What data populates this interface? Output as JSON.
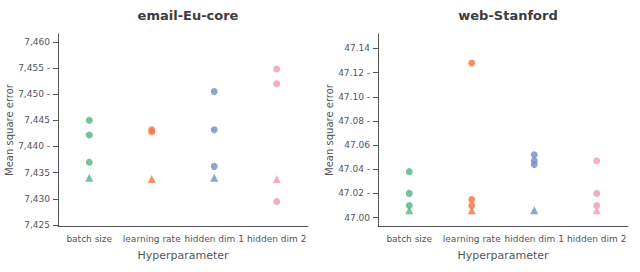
{
  "chart_data": [
    {
      "type": "scatter",
      "title": "email-Eu-core",
      "xlabel": "Hyperparameter",
      "ylabel": "Mean square error",
      "categories": [
        "batch size",
        "learning rate",
        "hidden dim 1",
        "hidden dim 2"
      ],
      "ylim": [
        7.4248,
        7.4615
      ],
      "yticks": [
        {
          "value": 7.425,
          "label": "7,425"
        },
        {
          "value": 7.43,
          "label": "7,430"
        },
        {
          "value": 7.435,
          "label": "7,435"
        },
        {
          "value": 7.44,
          "label": "7,440 -"
        },
        {
          "value": 7.445,
          "label": "7,445"
        },
        {
          "value": 7.45,
          "label": "7,450 -"
        },
        {
          "value": 7.455,
          "label": "7,455 -"
        },
        {
          "value": 7.46,
          "label": "7,460"
        }
      ],
      "grid": false,
      "series": [
        {
          "color": "#5cb88a",
          "marker": "circle",
          "x": [
            "batch size",
            "batch size",
            "batch size"
          ],
          "values": [
            7.445,
            7.4422,
            7.437
          ]
        },
        {
          "color": "#5cb88a",
          "marker": "triangle",
          "x": [
            "batch size"
          ],
          "values": [
            7.434
          ]
        },
        {
          "color": "#f47b4a",
          "marker": "circle",
          "x": [
            "learning rate",
            "learning rate"
          ],
          "values": [
            7.4432,
            7.4428
          ]
        },
        {
          "color": "#f47b4a",
          "marker": "triangle",
          "x": [
            "learning rate"
          ],
          "values": [
            7.4338
          ]
        },
        {
          "color": "#8090c8",
          "marker": "circle",
          "x": [
            "hidden dim 1",
            "hidden dim 1",
            "hidden dim 1"
          ],
          "values": [
            7.4505,
            7.4432,
            7.4362
          ]
        },
        {
          "color": "#8090c8",
          "marker": "triangle",
          "x": [
            "hidden dim 1"
          ],
          "values": [
            7.434
          ]
        },
        {
          "color": "#f0a0c0",
          "marker": "circle",
          "x": [
            "hidden dim 2",
            "hidden dim 2",
            "hidden dim 2"
          ],
          "values": [
            7.4548,
            7.452,
            7.4295
          ]
        },
        {
          "color": "#f0a0c0",
          "marker": "triangle",
          "x": [
            "hidden dim 2"
          ],
          "values": [
            7.4338
          ]
        }
      ]
    },
    {
      "type": "scatter",
      "title": "web-Stanford",
      "xlabel": "Hyperparameter",
      "ylabel": "Mean square error",
      "categories": [
        "batch size",
        "learning rate",
        "hidden dim 1",
        "hidden dim 2"
      ],
      "ylim": [
        46.993,
        47.152
      ],
      "yticks": [
        {
          "value": 47.0,
          "label": "47.00"
        },
        {
          "value": 47.02,
          "label": "47.02 -"
        },
        {
          "value": 47.04,
          "label": "47.04 -"
        },
        {
          "value": 47.06,
          "label": "47.06"
        },
        {
          "value": 47.08,
          "label": "47.08 -"
        },
        {
          "value": 47.1,
          "label": "47.10 -"
        },
        {
          "value": 47.12,
          "label": "47.12 -"
        },
        {
          "value": 47.14,
          "label": "47.14"
        }
      ],
      "grid": false,
      "series": [
        {
          "color": "#5cb88a",
          "marker": "circle",
          "x": [
            "batch size",
            "batch size",
            "batch size"
          ],
          "values": [
            47.038,
            47.02,
            47.01
          ]
        },
        {
          "color": "#5cb88a",
          "marker": "triangle",
          "x": [
            "batch size"
          ],
          "values": [
            47.006
          ]
        },
        {
          "color": "#f47b4a",
          "marker": "circle",
          "x": [
            "learning rate",
            "learning rate",
            "learning rate"
          ],
          "values": [
            47.128,
            47.015,
            47.01
          ]
        },
        {
          "color": "#f47b4a",
          "marker": "triangle",
          "x": [
            "learning rate"
          ],
          "values": [
            47.006
          ]
        },
        {
          "color": "#8090c8",
          "marker": "circle",
          "x": [
            "hidden dim 1",
            "hidden dim 1",
            "hidden dim 1"
          ],
          "values": [
            47.052,
            47.047,
            47.044
          ]
        },
        {
          "color": "#8090c8",
          "marker": "triangle",
          "x": [
            "hidden dim 1"
          ],
          "values": [
            47.006
          ]
        },
        {
          "color": "#f0a0c0",
          "marker": "circle",
          "x": [
            "hidden dim 2",
            "hidden dim 2",
            "hidden dim 2"
          ],
          "values": [
            47.047,
            47.02,
            47.01
          ]
        },
        {
          "color": "#f0a0c0",
          "marker": "triangle",
          "x": [
            "hidden dim 2"
          ],
          "values": [
            47.006
          ]
        }
      ]
    }
  ]
}
